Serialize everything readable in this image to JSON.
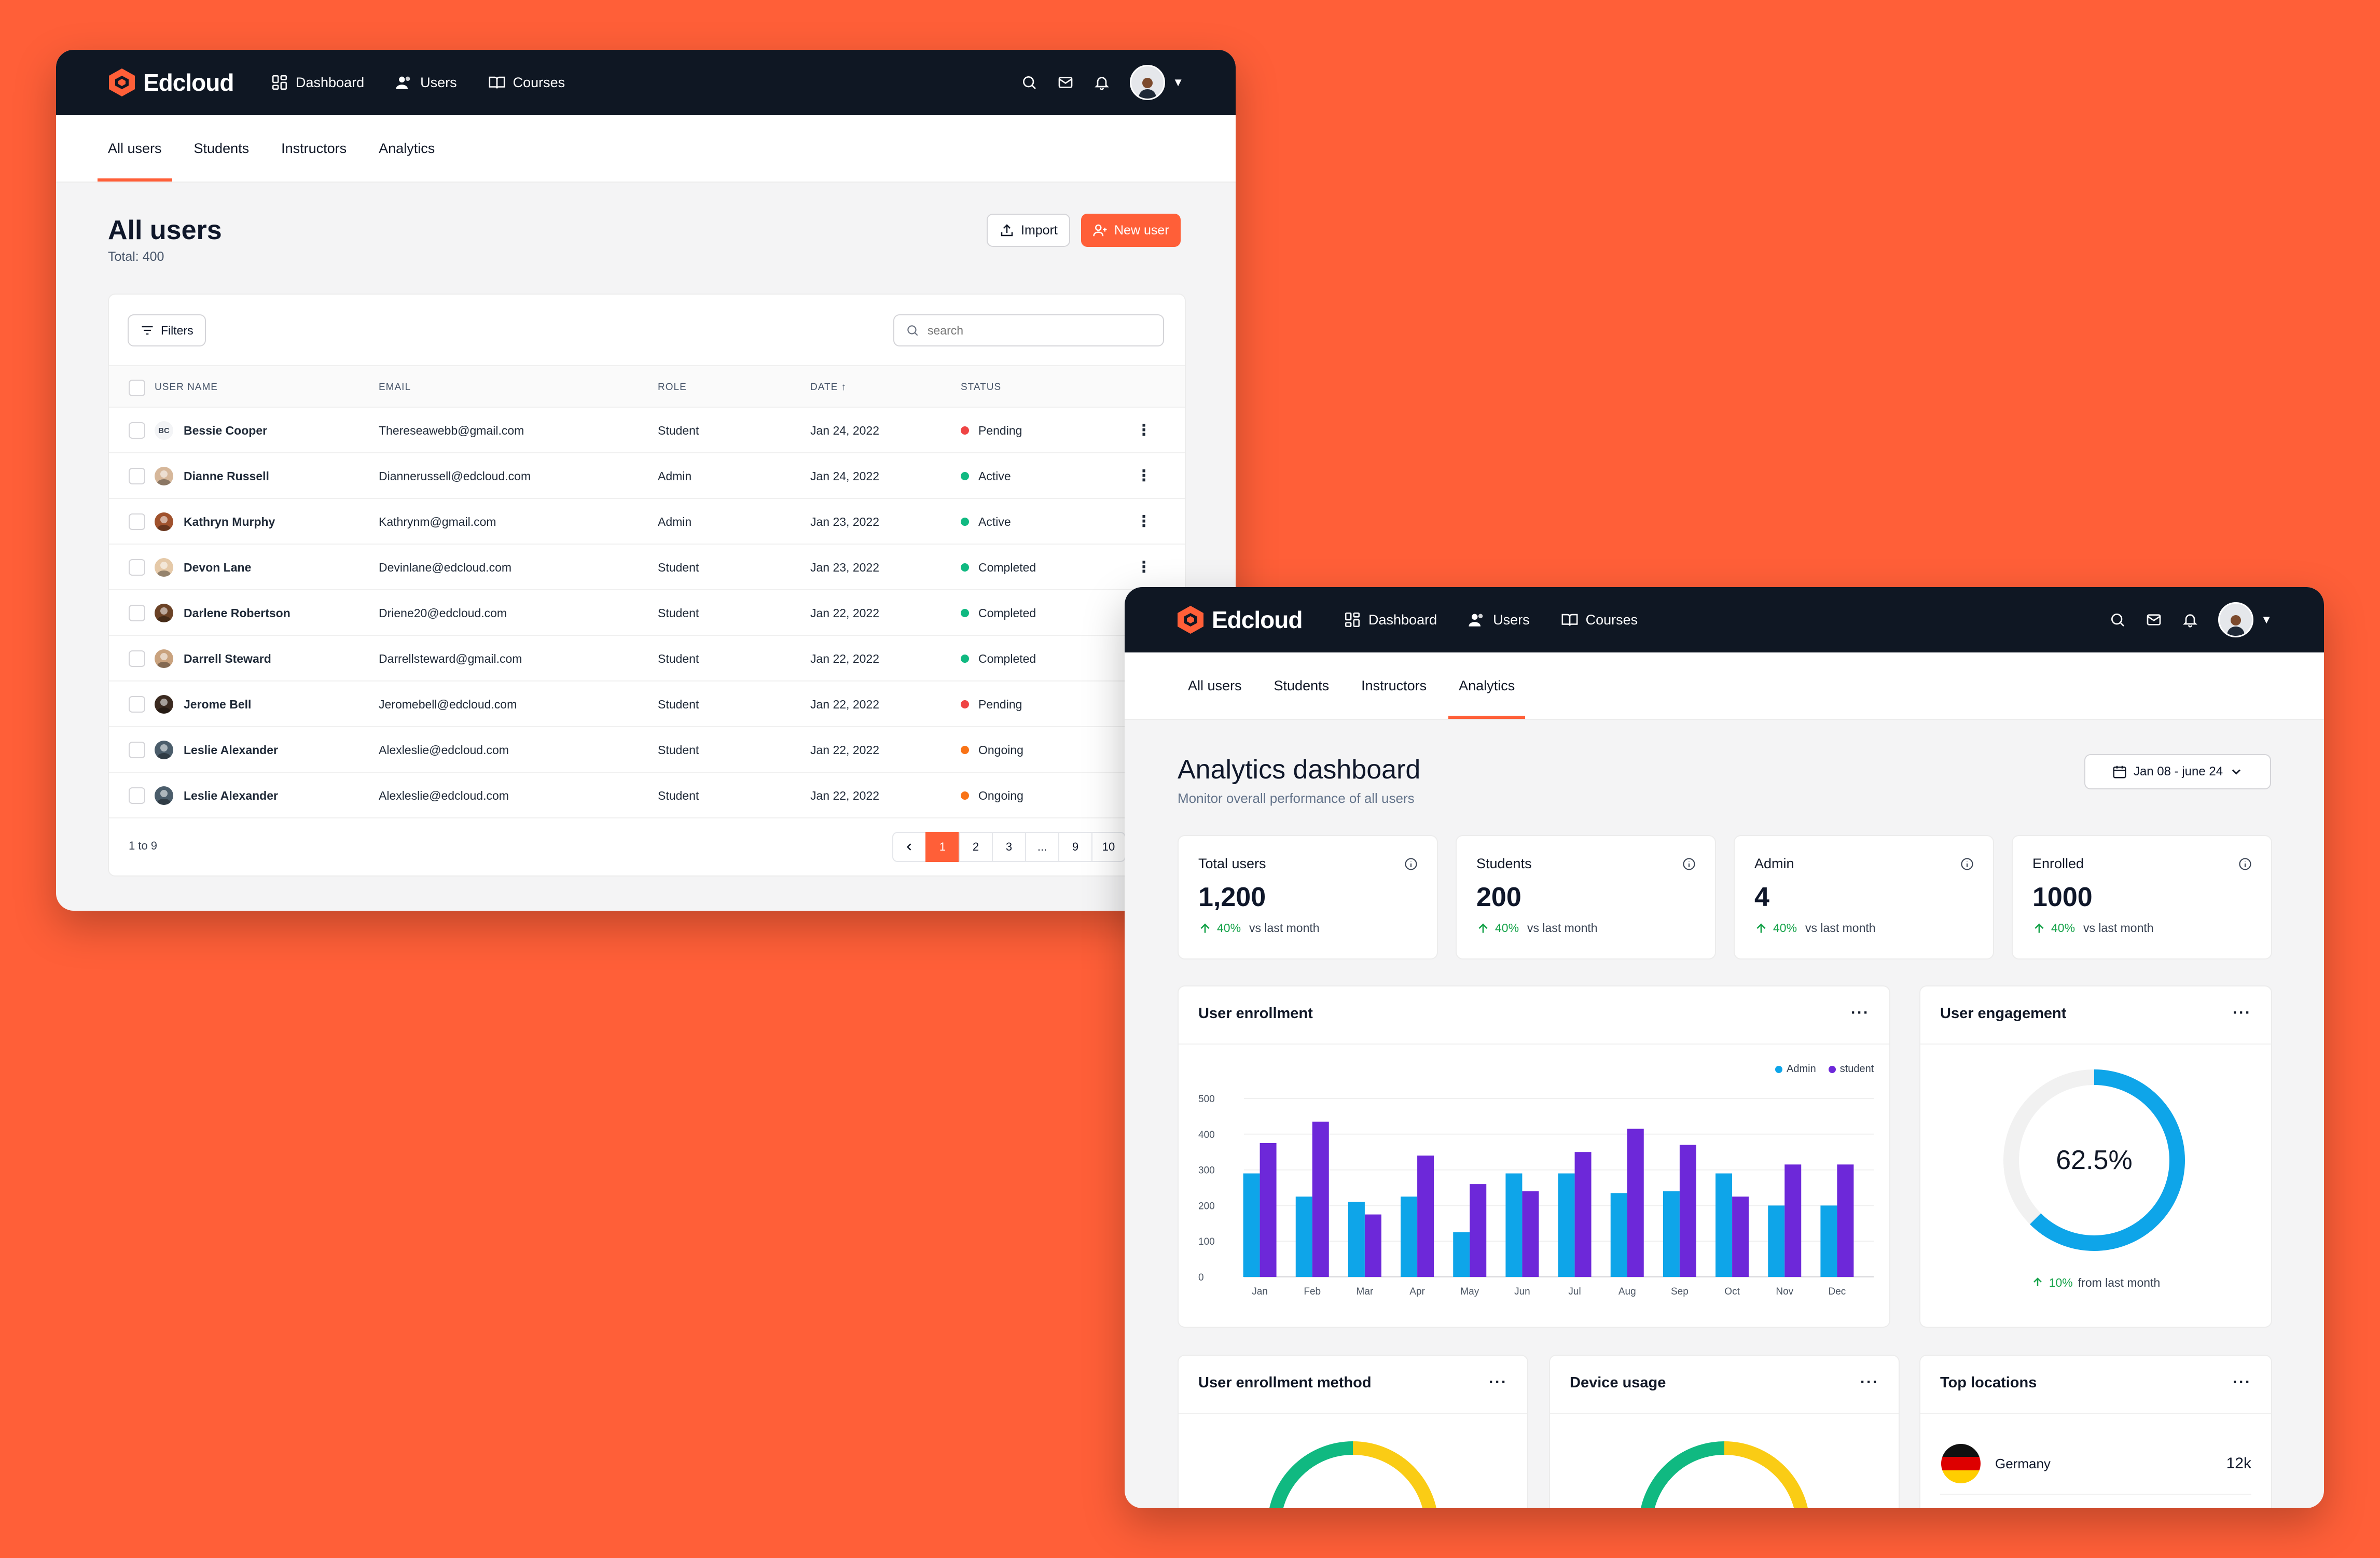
{
  "app": {
    "brand": "Edcloud",
    "nav": [
      "Dashboard",
      "Users",
      "Courses"
    ]
  },
  "colors": {
    "accent": "#FF5F38",
    "dark": "#0f1723",
    "admin": "#0ea5e9",
    "student": "#6d28d9"
  },
  "tabs": [
    "All users",
    "Students",
    "Instructors",
    "Analytics"
  ],
  "users_page": {
    "title": "All users",
    "total": "Total: 400",
    "import_label": "Import",
    "new_user_label": "New user",
    "filters_label": "Filters",
    "search_placeholder": "search",
    "columns": [
      "USER NAME",
      "EMAIL",
      "ROLE",
      "DATE",
      "STATUS"
    ],
    "sort_indicator": "↑",
    "rows": [
      {
        "initials": "BC",
        "name": "Bessie Cooper",
        "email": "Thereseawebb@gmail.com",
        "role": "Student",
        "date": "Jan 24, 2022",
        "status": "Pending",
        "status_color": "#ef4444"
      },
      {
        "initials": "",
        "name": "Dianne Russell",
        "email": "Diannerussell@edcloud.com",
        "role": "Admin",
        "date": "Jan 24, 2022",
        "status": "Active",
        "status_color": "#10b981"
      },
      {
        "initials": "",
        "name": "Kathryn Murphy",
        "email": "Kathrynm@gmail.com",
        "role": "Admin",
        "date": "Jan 23, 2022",
        "status": "Active",
        "status_color": "#10b981"
      },
      {
        "initials": "",
        "name": "Devon Lane",
        "email": "Devinlane@edcloud.com",
        "role": "Student",
        "date": "Jan 23, 2022",
        "status": "Completed",
        "status_color": "#10b981"
      },
      {
        "initials": "",
        "name": "Darlene Robertson",
        "email": "Driene20@edcloud.com",
        "role": "Student",
        "date": "Jan 22, 2022",
        "status": "Completed",
        "status_color": "#10b981"
      },
      {
        "initials": "",
        "name": "Darrell Steward",
        "email": "Darrellsteward@gmail.com",
        "role": "Student",
        "date": "Jan 22, 2022",
        "status": "Completed",
        "status_color": "#10b981"
      },
      {
        "initials": "",
        "name": "Jerome Bell",
        "email": "Jeromebell@edcloud.com",
        "role": "Student",
        "date": "Jan 22, 2022",
        "status": "Pending",
        "status_color": "#ef4444"
      },
      {
        "initials": "",
        "name": "Leslie Alexander",
        "email": "Alexleslie@edcloud.com",
        "role": "Student",
        "date": "Jan 22, 2022",
        "status": "Ongoing",
        "status_color": "#f97316"
      },
      {
        "initials": "",
        "name": "Leslie Alexander",
        "email": "Alexleslie@edcloud.com",
        "role": "Student",
        "date": "Jan 22, 2022",
        "status": "Ongoing",
        "status_color": "#f97316"
      }
    ],
    "range": "1 to 9",
    "pages": [
      "1",
      "2",
      "3",
      "...",
      "9",
      "10"
    ],
    "current_page": "1"
  },
  "analytics": {
    "title": "Analytics dashboard",
    "subtitle": "Monitor overall performance of all users",
    "date_range": "Jan 08 - june 24",
    "stats": [
      {
        "label": "Total users",
        "value": "1,200",
        "change": "40%",
        "vs": "vs last month"
      },
      {
        "label": "Students",
        "value": "200",
        "change": "40%",
        "vs": "vs last month"
      },
      {
        "label": "Admin",
        "value": "4",
        "change": "40%",
        "vs": "vs last month"
      },
      {
        "label": "Enrolled",
        "value": "1000",
        "change": "40%",
        "vs": "vs last month"
      }
    ],
    "enrollment_title": "User enrollment",
    "engagement": {
      "title": "User engagement",
      "value": "62.5%",
      "fraction": 0.625,
      "change": "10%",
      "vs": "from last month"
    },
    "method_title": "User enrollment method",
    "device_title": "Device usage",
    "locations": {
      "title": "Top locations",
      "items": [
        {
          "country": "Germany",
          "value": "12k"
        }
      ]
    }
  },
  "chart_data": {
    "type": "bar",
    "categories": [
      "Jan",
      "Feb",
      "Mar",
      "Apr",
      "May",
      "Jun",
      "Jul",
      "Aug",
      "Sep",
      "Oct",
      "Nov",
      "Dec"
    ],
    "series": [
      {
        "name": "Admin",
        "values": [
          290,
          225,
          210,
          225,
          125,
          290,
          290,
          235,
          240,
          290,
          200,
          200
        ]
      },
      {
        "name": "student",
        "values": [
          375,
          435,
          175,
          340,
          260,
          240,
          350,
          415,
          370,
          225,
          315,
          315
        ]
      }
    ],
    "yticks": [
      "0",
      "100",
      "200",
      "300",
      "400",
      "500"
    ],
    "ylim": [
      0,
      500
    ],
    "legend": "top-right",
    "grid": true
  }
}
